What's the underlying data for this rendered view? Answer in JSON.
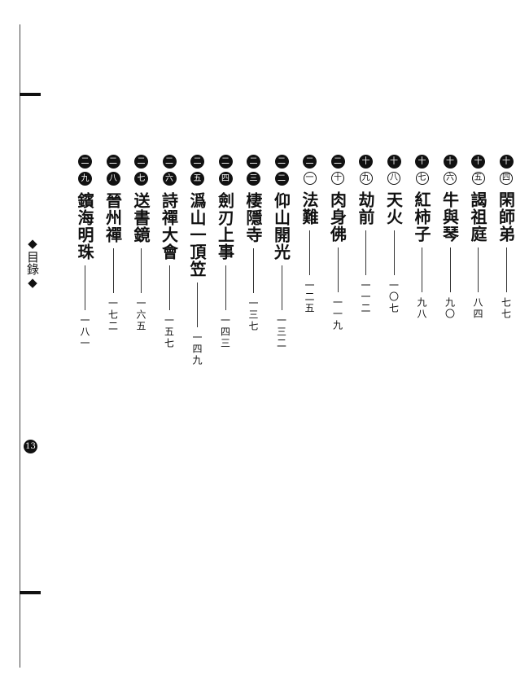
{
  "side_label": "目錄",
  "page_number": "13",
  "entries": [
    {
      "number": "十四",
      "title": "閑師弟",
      "page": "七七"
    },
    {
      "number": "十五",
      "title": "謁祖庭",
      "page": "八四"
    },
    {
      "number": "十六",
      "title": "牛與琴",
      "page": "九〇"
    },
    {
      "number": "十七",
      "title": "紅柿子",
      "page": "九八"
    },
    {
      "number": "十八",
      "title": "天火",
      "page": "一〇七"
    },
    {
      "number": "十九",
      "title": "劫前",
      "page": "一一二"
    },
    {
      "number": "二十",
      "title": "肉身佛",
      "page": "一一九"
    },
    {
      "number": "二一",
      "title": "法難",
      "page": "一二五"
    },
    {
      "number": "二二",
      "title": "仰山開光",
      "page": "一三二"
    },
    {
      "number": "二三",
      "title": "棲隱寺",
      "page": "一三七"
    },
    {
      "number": "二四",
      "title": "劍刃上事",
      "page": "一四三"
    },
    {
      "number": "二五",
      "title": "潙山一頂笠",
      "page": "一四九"
    },
    {
      "number": "二六",
      "title": "詩禪大會",
      "page": "一五七"
    },
    {
      "number": "二七",
      "title": "送書鏡",
      "page": "一六五"
    },
    {
      "number": "二八",
      "title": "晉州禪",
      "page": "一七二"
    },
    {
      "number": "二九",
      "title": "鑌海明珠",
      "page": "一八一"
    }
  ]
}
